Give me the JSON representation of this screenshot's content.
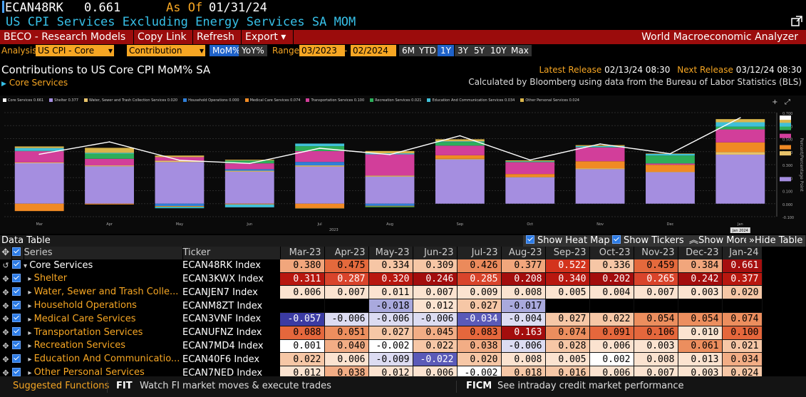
{
  "header": {
    "ticker": "ECAN48RK",
    "price": "0.661",
    "asof_label": "As Of",
    "asof_date": "01/31/24",
    "subtitle": "US CPI Services Excluding Energy Services SA MOM"
  },
  "redbar": {
    "beco": "BECO - Research Models",
    "copy": "Copy Link",
    "refresh": "Refresh",
    "export": "Export ▾",
    "app": "World Macroeconomic Analyzer"
  },
  "analysis": {
    "label": "Analysis",
    "dropdown1": "US CPI - Core",
    "dropdown2": "Contribution",
    "mom": "MoM%",
    "yoy": "YoY%",
    "range_label": "Range",
    "range_start": "03/2023",
    "range_sep": "-",
    "range_end": "02/2024",
    "periods": [
      "6M",
      "YTD",
      "1Y",
      "3Y",
      "5Y",
      "10Y",
      "Max"
    ]
  },
  "chart_header": {
    "title": "Contributions to US Core CPI MoM% SA",
    "expander": "Core Services",
    "latest_label": "Latest Release",
    "latest_value": "02/13/24 08:30",
    "next_label": "Next Release",
    "next_value": "03/12/24 08:30",
    "note": "Calculated by Bloomberg using data from the Bureau of Labor Statistics (BLS)"
  },
  "chart_data": {
    "type": "bar",
    "stacked": true,
    "categories": [
      "Mar",
      "Apr",
      "May",
      "Jun",
      "Jul",
      "Aug",
      "Sep",
      "Oct",
      "Nov",
      "Dec",
      "Jan"
    ],
    "year_labels": [
      "2023",
      "Jan 2024"
    ],
    "line_series": {
      "name": "Core Services",
      "values": [
        0.38,
        0.475,
        0.334,
        0.309,
        0.426,
        0.377,
        0.522,
        0.336,
        0.459,
        0.384,
        0.661
      ],
      "color": "#ffffff"
    },
    "series": [
      {
        "name": "Shelter",
        "color": "#a58ee0",
        "values": [
          0.311,
          0.287,
          0.32,
          0.246,
          0.285,
          0.208,
          0.34,
          0.202,
          0.265,
          0.242,
          0.377
        ]
      },
      {
        "name": "Water, Sewer and Trash Collection Services",
        "color": "#e8c36a",
        "values": [
          0.006,
          0.007,
          0.011,
          0.007,
          0.009,
          0.008,
          0.005,
          0.004,
          0.007,
          0.003,
          0.02
        ]
      },
      {
        "name": "Household Operations",
        "color": "#2f7fd8",
        "values": [
          0,
          0,
          -0.018,
          0.012,
          0.027,
          -0.017,
          0,
          0,
          0,
          0,
          0
        ]
      },
      {
        "name": "Medical Care Services",
        "color": "#f08a24",
        "values": [
          -0.057,
          -0.006,
          -0.006,
          -0.006,
          -0.034,
          -0.004,
          0.027,
          0.022,
          0.054,
          0.054,
          0.074
        ]
      },
      {
        "name": "Transportation Services",
        "color": "#d23e9a",
        "values": [
          0.088,
          0.051,
          0.027,
          0.045,
          0.083,
          0.163,
          0.074,
          0.091,
          0.106,
          0.01,
          0.1
        ]
      },
      {
        "name": "Recreation Services",
        "color": "#2dae5a",
        "values": [
          0.001,
          0.04,
          -0.002,
          0.022,
          0.038,
          -0.006,
          0.028,
          0.006,
          0.003,
          0.061,
          0.021
        ]
      },
      {
        "name": "Education And Communication Services",
        "color": "#40c0d8",
        "values": [
          0.022,
          0.006,
          -0.009,
          -0.022,
          0.02,
          0.008,
          0.005,
          0.002,
          0.008,
          0.013,
          0.034
        ]
      },
      {
        "name": "Other Personal Services",
        "color": "#d9b54a",
        "values": [
          0.012,
          0.038,
          0.012,
          0.006,
          -0.002,
          0.018,
          0.016,
          0.006,
          0.007,
          0.003,
          0.024
        ]
      }
    ],
    "legend": [
      {
        "label": "Core Services  0.661",
        "color": "#ffffff"
      },
      {
        "label": "Shelter  0.377",
        "color": "#a58ee0"
      },
      {
        "label": "Water, Sewer and Trash Collection Services  0.020",
        "color": "#e8c36a"
      },
      {
        "label": "Household Operations  0.000",
        "color": "#2f7fd8"
      },
      {
        "label": "Medical Care Services  0.074",
        "color": "#f08a24"
      },
      {
        "label": "Transportation Services  0.100",
        "color": "#d23e9a"
      },
      {
        "label": "Recreation Services  0.021",
        "color": "#2dae5a"
      },
      {
        "label": "Education And Communication Services  0.034",
        "color": "#40c0d8"
      },
      {
        "label": "Other Personal Services  0.024",
        "color": "#d9b54a"
      }
    ],
    "ylabel": "Percent/Percentage Point",
    "ylim": [
      -0.1,
      0.7
    ],
    "yticks": [
      0.7,
      0.6,
      0.5,
      0.4,
      0.3,
      0.2,
      0.1,
      0,
      -0.1
    ],
    "ytick_labels": [
      "0.700",
      "0.600",
      "0.500",
      "0.400",
      "0.300",
      "0.200",
      "0.100",
      "0.000",
      "-0.100"
    ],
    "grid": true,
    "legend_position": "top"
  },
  "data_table": {
    "label": "Data Table",
    "show_heat_map": "Show Heat Map",
    "show_tickers": "Show Tickers",
    "show_more": "Show More",
    "hide_table": "Hide Table",
    "col_series": "Series",
    "col_ticker": "Ticker",
    "columns": [
      "Mar-23",
      "Apr-23",
      "May-23",
      "Jun-23",
      "Jul-23",
      "Aug-23",
      "Sep-23",
      "Oct-23",
      "Nov-23",
      "Dec-23",
      "Jan-24"
    ],
    "rows": [
      {
        "name": "Core Services",
        "ticker": "ECAN48RK Index",
        "values": [
          "0.380",
          "0.475",
          "0.334",
          "0.309",
          "0.426",
          "0.377",
          "0.522",
          "0.336",
          "0.459",
          "0.384",
          "0.661"
        ]
      },
      {
        "name": "Shelter",
        "ticker": "ECAN3KWX Index",
        "values": [
          "0.311",
          "0.287",
          "0.320",
          "0.246",
          "0.285",
          "0.208",
          "0.340",
          "0.202",
          "0.265",
          "0.242",
          "0.377"
        ]
      },
      {
        "name": "Water, Sewer and Trash Colle...",
        "ticker": "ECANJEN7 Index",
        "values": [
          "0.006",
          "0.007",
          "0.011",
          "0.007",
          "0.009",
          "0.008",
          "0.005",
          "0.004",
          "0.007",
          "0.003",
          "0.020"
        ]
      },
      {
        "name": "Household Operations",
        "ticker": "ECANM8ZT Index",
        "values": [
          "",
          "",
          "-0.018",
          "0.012",
          "0.027",
          "-0.017",
          "",
          "",
          "",
          "",
          ""
        ]
      },
      {
        "name": "Medical Care Services",
        "ticker": "ECAN3VNF Index",
        "values": [
          "-0.057",
          "-0.006",
          "-0.006",
          "-0.006",
          "-0.034",
          "-0.004",
          "0.027",
          "0.022",
          "0.054",
          "0.054",
          "0.074"
        ]
      },
      {
        "name": "Transportation Services",
        "ticker": "ECANUFNZ Index",
        "values": [
          "0.088",
          "0.051",
          "0.027",
          "0.045",
          "0.083",
          "0.163",
          "0.074",
          "0.091",
          "0.106",
          "0.010",
          "0.100"
        ]
      },
      {
        "name": "Recreation Services",
        "ticker": "ECAN7MD4 Index",
        "values": [
          "0.001",
          "0.040",
          "-0.002",
          "0.022",
          "0.038",
          "-0.006",
          "0.028",
          "0.006",
          "0.003",
          "0.061",
          "0.021"
        ]
      },
      {
        "name": "Education And Communicatio...",
        "ticker": "ECAN40F6 Index",
        "values": [
          "0.022",
          "0.006",
          "-0.009",
          "-0.022",
          "0.020",
          "0.008",
          "0.005",
          "0.002",
          "0.008",
          "0.013",
          "0.034"
        ]
      },
      {
        "name": "Other Personal Services",
        "ticker": "ECAN7NED Index",
        "values": [
          "0.012",
          "0.038",
          "0.012",
          "0.006",
          "-0.002",
          "0.018",
          "0.016",
          "0.006",
          "0.007",
          "0.003",
          "0.024"
        ]
      }
    ]
  },
  "footer": {
    "suggested": "Suggested Functions",
    "f1_code": "FIT",
    "f1_desc": "Watch FI market moves & execute trades",
    "f2_code": "FICM",
    "f2_desc": "See intraday credit market performance"
  }
}
